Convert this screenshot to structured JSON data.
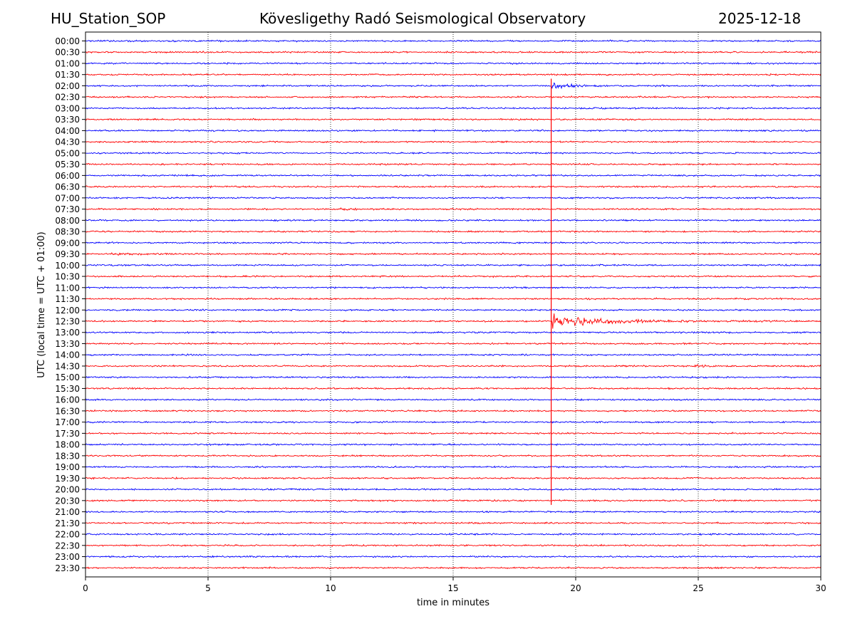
{
  "header": {
    "station": "HU_Station_SOP",
    "observatory": "Kövesligethy Radó Seismological Observatory",
    "date": "2025-12-18"
  },
  "chart_data": {
    "type": "line",
    "title": "Kövesligethy Radó Seismological Observatory",
    "xlabel": "time in minutes",
    "ylabel": "UTC (local time = UTC + 01:00)",
    "xlim": [
      0,
      30
    ],
    "x_ticks": [
      "0",
      "5",
      "10",
      "15",
      "20",
      "25",
      "30"
    ],
    "x_tick_values": [
      0,
      5,
      10,
      15,
      20,
      25,
      30
    ],
    "grid": "vertical dotted at x ticks",
    "row_labels": [
      "00:00",
      "00:30",
      "01:00",
      "01:30",
      "02:00",
      "02:30",
      "03:00",
      "03:30",
      "04:00",
      "04:30",
      "05:00",
      "05:30",
      "06:00",
      "06:30",
      "07:00",
      "07:30",
      "08:00",
      "08:30",
      "09:00",
      "09:30",
      "10:00",
      "10:30",
      "11:00",
      "11:30",
      "12:00",
      "12:30",
      "13:00",
      "13:30",
      "14:00",
      "14:30",
      "15:00",
      "15:30",
      "16:00",
      "16:30",
      "17:00",
      "17:30",
      "18:00",
      "18:30",
      "19:00",
      "19:30",
      "20:00",
      "20:30",
      "21:00",
      "21:30",
      "22:00",
      "22:30",
      "23:00",
      "23:30"
    ],
    "row_colors": [
      "#0000ff",
      "#ff0000"
    ],
    "events": [
      {
        "row": 4,
        "start_min": 19.0,
        "decay_min": 0.6,
        "amp": 1.5,
        "spike": 2.5
      },
      {
        "row": 25,
        "start_min": 19.0,
        "decay_min": 2.2,
        "amp": 2.5,
        "spike": 4.0
      },
      {
        "row": 19,
        "start_min": 1.0,
        "decay_min": 0.8,
        "amp": 0.5,
        "spike": 0
      },
      {
        "row": 15,
        "start_min": 2.6,
        "decay_min": 0.4,
        "amp": 0.4,
        "spike": 0
      },
      {
        "row": 15,
        "start_min": 10.4,
        "decay_min": 0.7,
        "amp": 0.35,
        "spike": 0
      },
      {
        "row": 29,
        "start_min": 24.8,
        "decay_min": 0.4,
        "amp": 0.45,
        "spike": 0
      }
    ],
    "vertical_trace": {
      "x_min": 19.0,
      "from_row": 4,
      "to_row": 41
    }
  }
}
